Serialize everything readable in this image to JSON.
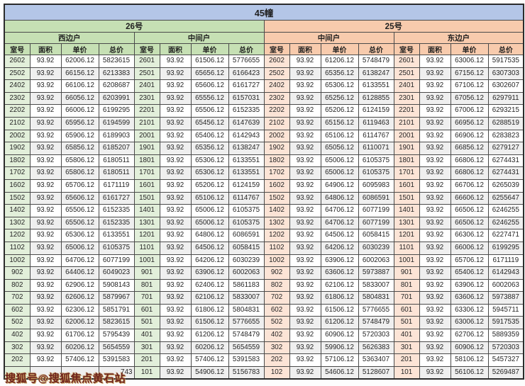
{
  "chart_data": {
    "type": "table",
    "title": "45幢",
    "column_headers": [
      "室号",
      "面积",
      "单价",
      "总价"
    ],
    "buildings": [
      {
        "name": "26号",
        "units": [
          "西边户",
          "中间户"
        ]
      },
      {
        "name": "25号",
        "units": [
          "中间户",
          "东边户"
        ]
      }
    ],
    "rows": [
      [
        "2602",
        "93.92",
        "62006.12",
        "5823615",
        "2601",
        "93.92",
        "61506.12",
        "5776655",
        "2602",
        "93.92",
        "61206.12",
        "5748479",
        "2601",
        "93.92",
        "63006.12",
        "5917535"
      ],
      [
        "2502",
        "93.92",
        "66156.12",
        "6213383",
        "2501",
        "93.92",
        "65656.12",
        "6166423",
        "2502",
        "93.92",
        "65356.12",
        "6138247",
        "2501",
        "93.92",
        "67156.12",
        "6307303"
      ],
      [
        "2402",
        "93.92",
        "66106.12",
        "6208687",
        "2401",
        "93.92",
        "65606.12",
        "6161727",
        "2402",
        "93.92",
        "65306.12",
        "6133551",
        "2401",
        "93.92",
        "67106.12",
        "6302607"
      ],
      [
        "2302",
        "93.92",
        "66056.12",
        "6203991",
        "2301",
        "93.92",
        "65556.12",
        "6157031",
        "2302",
        "93.92",
        "65256.12",
        "6128855",
        "2301",
        "93.92",
        "67056.12",
        "6297911"
      ],
      [
        "2202",
        "93.92",
        "66006.12",
        "6199295",
        "2201",
        "93.92",
        "65506.12",
        "6152335",
        "2202",
        "93.92",
        "65206.12",
        "6124159",
        "2201",
        "93.92",
        "67006.12",
        "6293215"
      ],
      [
        "2102",
        "93.92",
        "65956.12",
        "6194599",
        "2101",
        "93.92",
        "65456.12",
        "6147639",
        "2102",
        "93.92",
        "65156.12",
        "6119463",
        "2101",
        "93.92",
        "66956.12",
        "6288519"
      ],
      [
        "2002",
        "93.92",
        "65906.12",
        "6189903",
        "2001",
        "93.92",
        "65406.12",
        "6142943",
        "2002",
        "93.92",
        "65106.12",
        "6114767",
        "2001",
        "93.92",
        "66906.12",
        "6283823"
      ],
      [
        "1902",
        "93.92",
        "65856.12",
        "6185207",
        "1901",
        "93.92",
        "65356.12",
        "6138247",
        "1902",
        "93.92",
        "65056.12",
        "6110071",
        "1901",
        "93.92",
        "66856.12",
        "6279127"
      ],
      [
        "1802",
        "93.92",
        "65806.12",
        "6180511",
        "1801",
        "93.92",
        "65306.12",
        "6133551",
        "1802",
        "93.92",
        "65006.12",
        "6105375",
        "1801",
        "93.92",
        "66806.12",
        "6274431"
      ],
      [
        "1702",
        "93.92",
        "65806.12",
        "6180511",
        "1701",
        "93.92",
        "65306.12",
        "6133551",
        "1702",
        "93.92",
        "65006.12",
        "6105375",
        "1701",
        "93.92",
        "66806.12",
        "6274431"
      ],
      [
        "1602",
        "93.92",
        "65706.12",
        "6171119",
        "1601",
        "93.92",
        "65206.12",
        "6124159",
        "1602",
        "93.92",
        "64906.12",
        "6095983",
        "1601",
        "93.92",
        "66706.12",
        "6265039"
      ],
      [
        "1502",
        "93.92",
        "65606.12",
        "6161727",
        "1501",
        "93.92",
        "65106.12",
        "6114767",
        "1502",
        "93.92",
        "64806.12",
        "6086591",
        "1501",
        "93.92",
        "66606.12",
        "6255647"
      ],
      [
        "1402",
        "93.92",
        "65506.12",
        "6152335",
        "1401",
        "93.92",
        "65006.12",
        "6105375",
        "1402",
        "93.92",
        "64706.12",
        "6077199",
        "1401",
        "93.92",
        "66506.12",
        "6246255"
      ],
      [
        "1302",
        "93.92",
        "65506.12",
        "6152335",
        "1301",
        "93.92",
        "65006.12",
        "6105375",
        "1302",
        "93.92",
        "64706.12",
        "6077199",
        "1301",
        "93.92",
        "66506.12",
        "6246255"
      ],
      [
        "1202",
        "93.92",
        "65306.12",
        "6133551",
        "1201",
        "93.92",
        "64806.12",
        "6086591",
        "1202",
        "93.92",
        "64506.12",
        "6058415",
        "1201",
        "93.92",
        "66306.12",
        "6227471"
      ],
      [
        "1102",
        "93.92",
        "65006.12",
        "6105375",
        "1101",
        "93.92",
        "64506.12",
        "6058415",
        "1102",
        "93.92",
        "64206.12",
        "6030239",
        "1101",
        "93.92",
        "66006.12",
        "6199295"
      ],
      [
        "1002",
        "93.92",
        "64706.12",
        "6077199",
        "1001",
        "93.92",
        "64206.12",
        "6030239",
        "1002",
        "93.92",
        "63906.12",
        "6002063",
        "1001",
        "93.92",
        "65706.12",
        "6171119"
      ],
      [
        "902",
        "93.92",
        "64406.12",
        "6049023",
        "901",
        "93.92",
        "63906.12",
        "6002063",
        "902",
        "93.92",
        "63606.12",
        "5973887",
        "901",
        "93.92",
        "65406.12",
        "6142943"
      ],
      [
        "802",
        "93.92",
        "62906.12",
        "5908143",
        "801",
        "93.92",
        "62406.12",
        "5861183",
        "802",
        "93.92",
        "62106.12",
        "5833007",
        "801",
        "93.92",
        "63906.12",
        "6002063"
      ],
      [
        "702",
        "93.92",
        "62606.12",
        "5879967",
        "701",
        "93.92",
        "62106.12",
        "5833007",
        "702",
        "93.92",
        "61806.12",
        "5804831",
        "701",
        "93.92",
        "63606.12",
        "5973887"
      ],
      [
        "602",
        "93.92",
        "62306.12",
        "5851791",
        "601",
        "93.92",
        "61806.12",
        "5804831",
        "602",
        "93.92",
        "61506.12",
        "5776655",
        "601",
        "93.92",
        "63306.12",
        "5945711"
      ],
      [
        "502",
        "93.92",
        "62006.12",
        "5823615",
        "501",
        "93.92",
        "61506.12",
        "5776655",
        "502",
        "93.92",
        "61206.12",
        "5748479",
        "501",
        "93.92",
        "63006.12",
        "5917535"
      ],
      [
        "402",
        "93.92",
        "61706.12",
        "5795439",
        "401",
        "93.92",
        "61206.12",
        "5748479",
        "402",
        "93.92",
        "60906.12",
        "5720303",
        "401",
        "93.92",
        "62706.12",
        "5889359"
      ],
      [
        "302",
        "93.92",
        "60206.12",
        "5654559",
        "301",
        "93.92",
        "60206.12",
        "5654559",
        "302",
        "93.92",
        "59906.12",
        "5626383",
        "301",
        "93.92",
        "60906.12",
        "5720303"
      ],
      [
        "202",
        "93.92",
        "57406.12",
        "5391583",
        "201",
        "93.92",
        "57406.12",
        "5391583",
        "202",
        "93.92",
        "57106.12",
        "5363407",
        "201",
        "93.92",
        "58106.12",
        "5457327"
      ],
      [
        "",
        "",
        "",
        "743",
        "101",
        "93.92",
        "54906.12",
        "5156783",
        "102",
        "93.92",
        "54606.12",
        "5128607",
        "101",
        "93.92",
        "56106.12",
        "5269487"
      ]
    ]
  },
  "watermark": {
    "text": "搜狐号@搜狐焦点黄石站"
  },
  "colors": {
    "title_bg": "#b4c6e7",
    "green_header": "#c6e0b4",
    "orange_header": "#f8cbad",
    "green_room": "#e2efda",
    "orange_room": "#fce4d6",
    "stripe_odd": "#ffffff",
    "stripe_even": "#efefef",
    "border": "#4a4a4a",
    "watermark": "#6e221c",
    "watermark_outline": "#c9a25e"
  }
}
